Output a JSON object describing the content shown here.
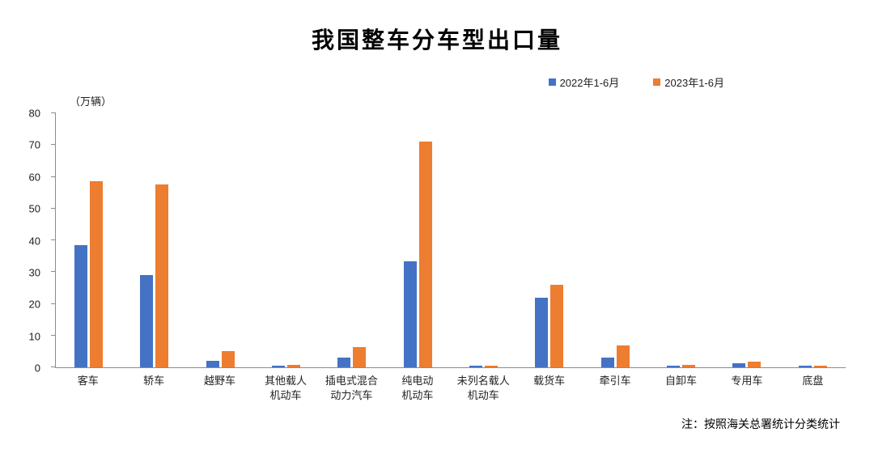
{
  "title": "我国整车分车型出口量",
  "note": "注：按照海关总署统计分类统计",
  "legend": {
    "items": [
      {
        "label": "2022年1-6月",
        "color": "#4472C4"
      },
      {
        "label": "2023年1-6月",
        "color": "#ED7D31"
      }
    ]
  },
  "chart_data": {
    "type": "bar",
    "title": "我国整车分车型出口量",
    "ylabel": "（万辆）",
    "ylim": [
      0,
      80
    ],
    "ytick_step": 10,
    "grid": false,
    "legend_position": "top-right",
    "categories": [
      "客车",
      "轿车",
      "越野车",
      "其他载人\n机动车",
      "插电式混合\n动力汽车",
      "纯电动\n机动车",
      "未列名载人\n机动车",
      "载货车",
      "牵引车",
      "自卸车",
      "专用车",
      "底盘"
    ],
    "series": [
      {
        "name": "2022年1-6月",
        "color": "#4472C4",
        "values": [
          38.5,
          29,
          2,
          0.5,
          3,
          33.3,
          0.5,
          22,
          3,
          0.5,
          1.3,
          0.5
        ]
      },
      {
        "name": "2023年1-6月",
        "color": "#ED7D31",
        "values": [
          58.5,
          57.6,
          5.2,
          0.8,
          6.3,
          71,
          0.5,
          26,
          7,
          0.8,
          1.8,
          0.5
        ]
      }
    ]
  }
}
